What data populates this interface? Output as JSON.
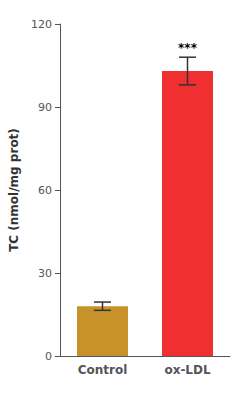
{
  "chart_data": {
    "type": "bar",
    "categories": [
      "Control",
      "ox-LDL"
    ],
    "values": [
      18.0,
      103.0
    ],
    "errors": [
      1.5,
      5.0
    ],
    "colors": [
      "#C8922A",
      "#F03030"
    ],
    "ylabel": "TC (nmol/mg prot)",
    "ylim": [
      0,
      120
    ],
    "yticks": [
      0,
      30,
      60,
      90,
      120
    ],
    "annotations": [
      {
        "category": "ox-LDL",
        "text": "***"
      }
    ],
    "grid": false
  }
}
